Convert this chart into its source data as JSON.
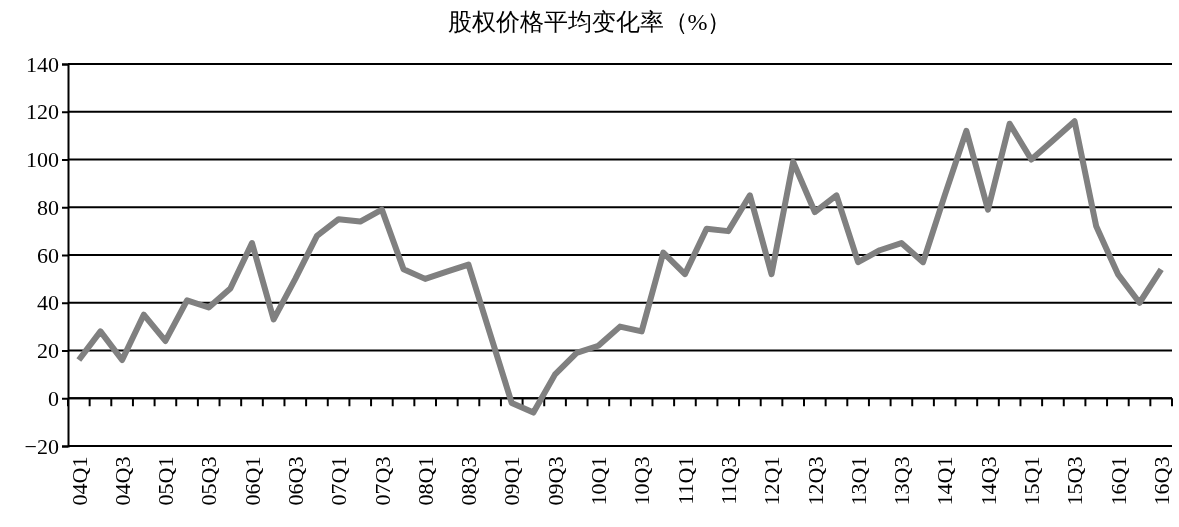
{
  "chart_data": {
    "type": "line",
    "title": "股权价格平均变化率（%）",
    "categories": [
      "04Q1",
      null,
      "04Q3",
      null,
      "05Q1",
      null,
      "05Q3",
      null,
      "06Q1",
      null,
      "06Q3",
      null,
      "07Q1",
      null,
      "07Q3",
      null,
      "08Q1",
      null,
      "08Q3",
      null,
      "09Q1",
      null,
      "09Q3",
      null,
      "10Q1",
      null,
      "10Q3",
      null,
      "11Q1",
      null,
      "11Q3",
      null,
      "12Q1",
      null,
      "12Q3",
      null,
      "13Q1",
      null,
      "13Q3",
      null,
      "14Q1",
      null,
      "14Q3",
      null,
      "15Q1",
      null,
      "15Q3",
      null,
      "16Q1",
      null,
      "16Q3"
    ],
    "series": [
      {
        "color": "#808080",
        "values": [
          16,
          28,
          16,
          35,
          24,
          41,
          38,
          46,
          65,
          33,
          50,
          68,
          75,
          74,
          79,
          54,
          50,
          53,
          56,
          27,
          -2,
          -6,
          10,
          19,
          22,
          30,
          28,
          61,
          52,
          71,
          70,
          85,
          52,
          99,
          78,
          85,
          57,
          62,
          65,
          57,
          85,
          112,
          79,
          115,
          100,
          108,
          116,
          72,
          52,
          40,
          54
        ]
      }
    ],
    "ylim": [
      -20,
      140
    ],
    "yticks": [
      -20,
      0,
      20,
      40,
      60,
      80,
      100,
      120,
      140
    ],
    "grid": "y",
    "marker": "none",
    "line_style": "solid"
  }
}
